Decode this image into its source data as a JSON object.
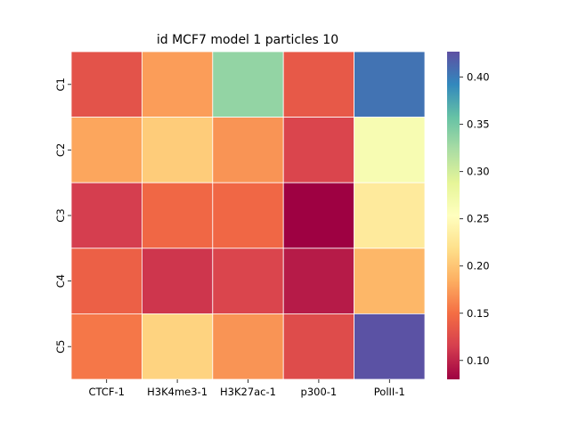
{
  "chart_data": {
    "type": "heatmap",
    "title": "id MCF7 model 1 particles 10",
    "xlabel": "",
    "ylabel": "",
    "columns": [
      "CTCF-1",
      "H3K4me3-1",
      "H3K27ac-1",
      "p300-1",
      "PolII-1"
    ],
    "rows": [
      "C1",
      "C2",
      "C3",
      "C4",
      "C5"
    ],
    "values": [
      [
        0.13,
        0.175,
        0.335,
        0.135,
        0.405
      ],
      [
        0.18,
        0.205,
        0.17,
        0.12,
        0.265
      ],
      [
        0.115,
        0.145,
        0.145,
        0.08,
        0.23
      ],
      [
        0.14,
        0.11,
        0.12,
        0.095,
        0.19
      ],
      [
        0.155,
        0.21,
        0.17,
        0.125,
        0.425
      ]
    ],
    "colormap": "Spectral",
    "vmin": 0.08,
    "vmax": 0.427,
    "colorbar": {
      "ticks": [
        0.1,
        0.15,
        0.2,
        0.25,
        0.3,
        0.35,
        0.4
      ],
      "tick_labels": [
        "0.10",
        "0.15",
        "0.20",
        "0.25",
        "0.30",
        "0.35",
        "0.40"
      ]
    }
  }
}
